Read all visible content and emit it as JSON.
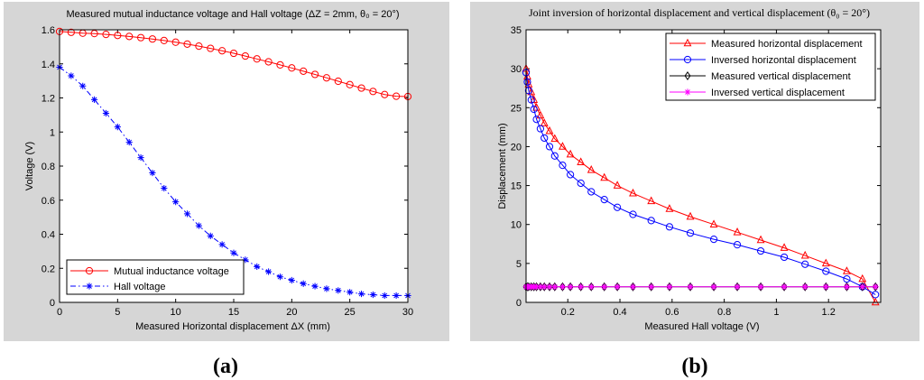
{
  "chart_data": [
    {
      "type": "line",
      "title": "Measured mutual inductance voltage and Hall voltage  (ΔZ = 2mm, θ₀ = 20°)",
      "xlabel": "Measured Horizontal displacement ΔX (mm)",
      "ylabel": "Voltage (V)",
      "xlim": [
        0,
        30
      ],
      "ylim": [
        0,
        1.6
      ],
      "xticks": [
        "0",
        "5",
        "10",
        "15",
        "20",
        "25",
        "30"
      ],
      "yticks": [
        "0",
        "0.2",
        "0.4",
        "0.6",
        "0.8",
        "1",
        "1.2",
        "1.4",
        "1.6"
      ],
      "legend_position": "bottom-left",
      "panel_label": "(a)",
      "series": [
        {
          "name": "Mutual inductance voltage",
          "color": "#ff0000",
          "marker": "circle",
          "x": [
            0,
            1,
            2,
            3,
            4,
            5,
            6,
            7,
            8,
            9,
            10,
            11,
            12,
            13,
            14,
            15,
            16,
            17,
            18,
            19,
            20,
            21,
            22,
            23,
            24,
            25,
            26,
            27,
            28,
            29,
            30
          ],
          "y": [
            1.59,
            1.585,
            1.58,
            1.578,
            1.573,
            1.567,
            1.561,
            1.554,
            1.546,
            1.537,
            1.527,
            1.516,
            1.504,
            1.491,
            1.477,
            1.462,
            1.446,
            1.429,
            1.412,
            1.394,
            1.376,
            1.357,
            1.338,
            1.318,
            1.298,
            1.278,
            1.258,
            1.238,
            1.22,
            1.21,
            1.208
          ]
        },
        {
          "name": "Hall voltage",
          "color": "#0000ff",
          "marker": "star",
          "dash": "dashdot",
          "x": [
            0,
            1,
            2,
            3,
            4,
            5,
            6,
            7,
            8,
            9,
            10,
            11,
            12,
            13,
            14,
            15,
            16,
            17,
            18,
            19,
            20,
            21,
            22,
            23,
            24,
            25,
            26,
            27,
            28,
            29,
            30
          ],
          "y": [
            1.38,
            1.33,
            1.27,
            1.19,
            1.11,
            1.03,
            0.94,
            0.85,
            0.76,
            0.67,
            0.59,
            0.52,
            0.45,
            0.39,
            0.34,
            0.29,
            0.25,
            0.21,
            0.18,
            0.15,
            0.13,
            0.11,
            0.095,
            0.08,
            0.07,
            0.06,
            0.05,
            0.045,
            0.04,
            0.04,
            0.04
          ]
        }
      ]
    },
    {
      "type": "line",
      "title": "Joint inversion of horizontal displacement and vertical displacement (θ₀ = 20°)",
      "xlabel": "Measured Hall voltage (V)",
      "ylabel": "Displacement (mm)",
      "xlim": [
        0.04,
        1.4
      ],
      "ylim": [
        0,
        35
      ],
      "xticks": [
        "0.2",
        "0.4",
        "0.6",
        "0.8",
        "1",
        "1.2"
      ],
      "yticks": [
        "0",
        "5",
        "10",
        "15",
        "20",
        "25",
        "30",
        "35"
      ],
      "legend_position": "top-right",
      "panel_label": "(b)",
      "series": [
        {
          "name": "Measured horizontal displacement",
          "color": "#ff0000",
          "marker": "triangle",
          "x": [
            0.04,
            0.045,
            0.05,
            0.06,
            0.07,
            0.08,
            0.095,
            0.11,
            0.13,
            0.15,
            0.18,
            0.21,
            0.25,
            0.29,
            0.34,
            0.39,
            0.45,
            0.52,
            0.59,
            0.67,
            0.76,
            0.85,
            0.94,
            1.03,
            1.11,
            1.19,
            1.27,
            1.33,
            1.38
          ],
          "y": [
            30,
            29,
            28,
            27,
            26,
            25,
            24,
            23,
            22,
            21,
            20,
            19,
            18,
            17,
            16,
            15,
            14,
            13,
            12,
            11,
            10,
            9,
            8,
            7,
            6,
            5,
            4,
            3,
            0
          ]
        },
        {
          "name": "Inversed horizontal displacement",
          "color": "#0000ff",
          "marker": "circle",
          "x": [
            0.04,
            0.045,
            0.05,
            0.06,
            0.07,
            0.08,
            0.095,
            0.11,
            0.13,
            0.15,
            0.18,
            0.21,
            0.25,
            0.29,
            0.34,
            0.39,
            0.45,
            0.52,
            0.59,
            0.67,
            0.76,
            0.85,
            0.94,
            1.03,
            1.11,
            1.19,
            1.27,
            1.33,
            1.38
          ],
          "y": [
            29.5,
            28.3,
            27.2,
            26.0,
            24.8,
            23.5,
            22.3,
            21.1,
            20.0,
            18.8,
            17.6,
            16.4,
            15.3,
            14.2,
            13.2,
            12.2,
            11.3,
            10.5,
            9.7,
            8.9,
            8.1,
            7.4,
            6.6,
            5.8,
            4.9,
            4.0,
            3.0,
            2.0,
            1.0
          ]
        },
        {
          "name": "Measured vertical displacement",
          "color": "#000000",
          "marker": "diamond",
          "x": [
            0.04,
            0.045,
            0.05,
            0.06,
            0.07,
            0.08,
            0.095,
            0.11,
            0.13,
            0.15,
            0.18,
            0.21,
            0.25,
            0.29,
            0.34,
            0.39,
            0.45,
            0.52,
            0.59,
            0.67,
            0.76,
            0.85,
            0.94,
            1.03,
            1.11,
            1.19,
            1.27,
            1.33,
            1.38
          ],
          "y": [
            2,
            2,
            2,
            2,
            2,
            2,
            2,
            2,
            2,
            2,
            2,
            2,
            2,
            2,
            2,
            2,
            2,
            2,
            2,
            2,
            2,
            2,
            2,
            2,
            2,
            2,
            2,
            2,
            2
          ]
        },
        {
          "name": "Inversed vertical displacement",
          "color": "#ff00ff",
          "marker": "star",
          "x": [
            0.04,
            0.045,
            0.05,
            0.06,
            0.07,
            0.08,
            0.095,
            0.11,
            0.13,
            0.15,
            0.18,
            0.21,
            0.25,
            0.29,
            0.34,
            0.39,
            0.45,
            0.52,
            0.59,
            0.67,
            0.76,
            0.85,
            0.94,
            1.03,
            1.11,
            1.19,
            1.27,
            1.33,
            1.38
          ],
          "y": [
            2,
            2,
            2,
            2,
            2,
            2,
            2,
            2,
            2,
            2,
            2,
            2,
            2,
            2,
            2,
            2,
            2,
            2,
            2,
            2,
            2,
            2,
            2,
            2,
            2,
            2,
            2,
            2,
            2
          ]
        }
      ]
    }
  ]
}
